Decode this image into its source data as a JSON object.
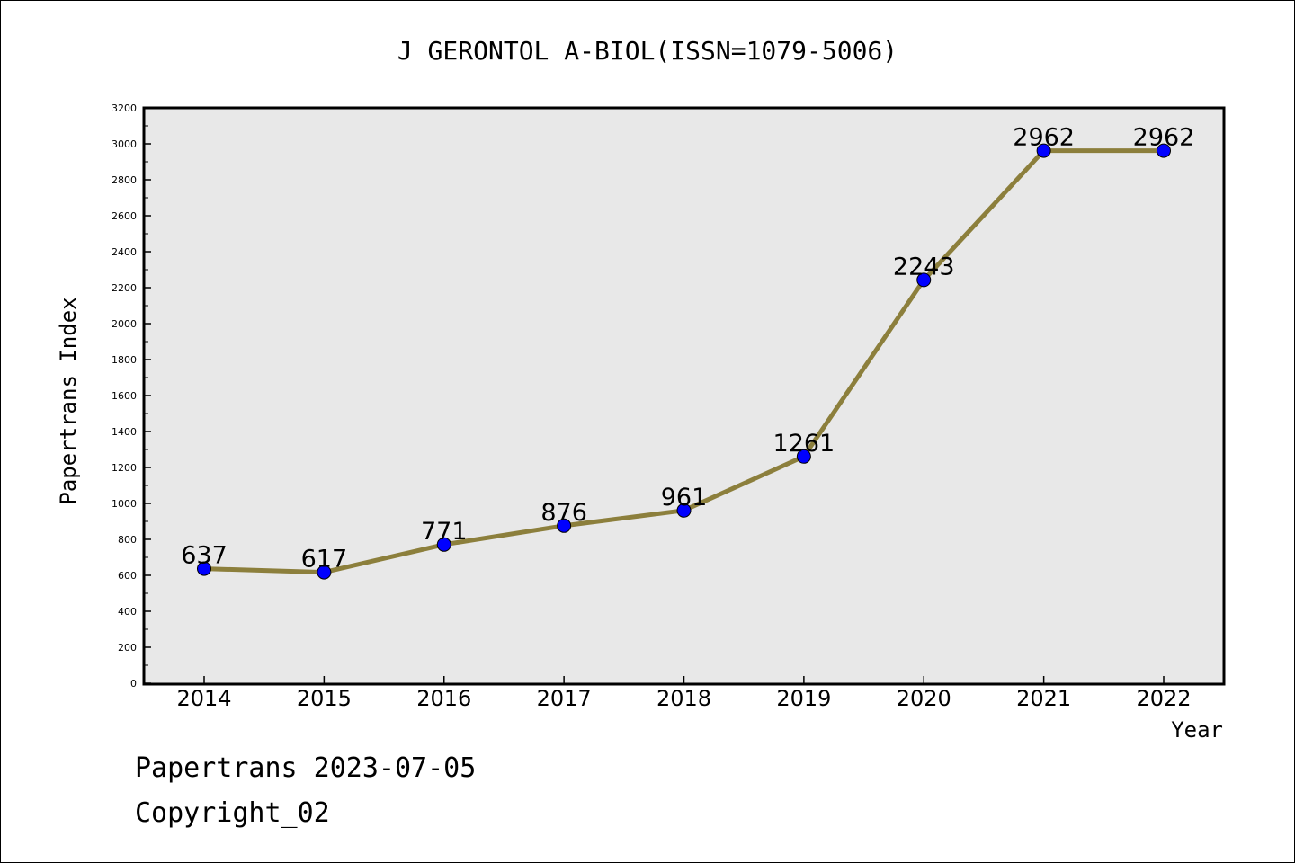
{
  "chart_data": {
    "type": "line",
    "title": "J GERONTOL A-BIOL(ISSN=1079-5006)",
    "xlabel": "Year",
    "ylabel": "Papertrans Index",
    "categories": [
      "2014",
      "2015",
      "2016",
      "2017",
      "2018",
      "2019",
      "2020",
      "2021",
      "2022"
    ],
    "series": [
      {
        "values": [
          637,
          617,
          771,
          876,
          961,
          1261,
          2243,
          2962,
          2962
        ]
      }
    ],
    "data_labels": [
      "637",
      "617",
      "771",
      "876",
      "961",
      "1261",
      "2243",
      "2962",
      "2962"
    ],
    "ylim": [
      0,
      3200
    ],
    "yticks": [
      0,
      200,
      400,
      600,
      800,
      1000,
      1200,
      1400,
      1600,
      1800,
      2000,
      2200,
      2400,
      2600,
      2800,
      3000,
      3200
    ],
    "grid": false,
    "colors": {
      "line": "#8c7f3c",
      "marker": "#0000ff",
      "plot_background": "#e8e8e8"
    }
  },
  "footer": {
    "line1": "Papertrans 2023-07-05",
    "line2": "Copyright_02"
  }
}
